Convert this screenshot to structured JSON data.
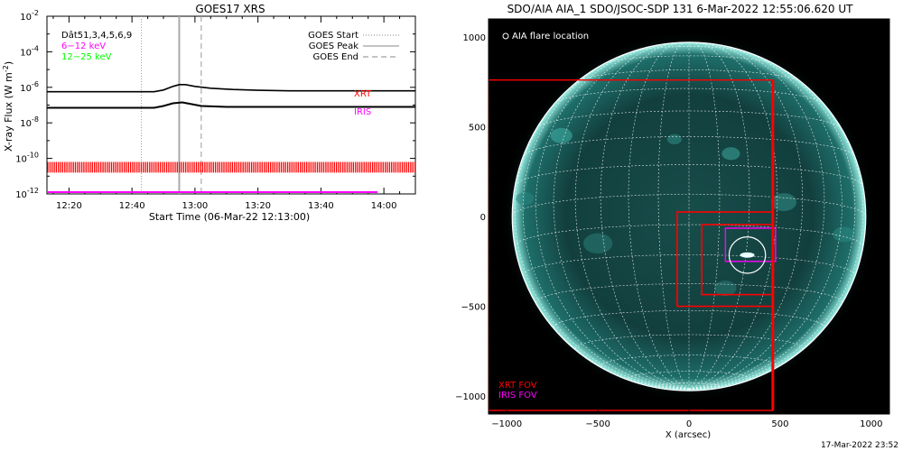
{
  "goes": {
    "title": "GOES17 XRS",
    "ylabel": "X-ray Flux (W m",
    "ylabel_sup": "-2",
    "ylabel_close": ")",
    "xlabel": "Start Time (06-Mar-22 12:13:00)",
    "ylim_exp": [
      -12,
      -2
    ],
    "y_ticks": [
      {
        "base": "10",
        "exp": "-2",
        "e": -2
      },
      {
        "base": "10",
        "exp": "-4",
        "e": -4
      },
      {
        "base": "10",
        "exp": "-6",
        "e": -6
      },
      {
        "base": "10",
        "exp": "-8",
        "e": -8
      },
      {
        "base": "10",
        "exp": "-10",
        "e": -10
      },
      {
        "base": "10",
        "exp": "-12",
        "e": -12
      }
    ],
    "xlim_min": [
      13,
      130
    ],
    "x_ticks": [
      {
        "label": "12:20",
        "m": 20
      },
      {
        "label": "12:40",
        "m": 40
      },
      {
        "label": "13:00",
        "m": 60
      },
      {
        "label": "13:20",
        "m": 80
      },
      {
        "label": "13:40",
        "m": 100
      },
      {
        "label": "14:00",
        "m": 120
      }
    ],
    "legend_left": [
      {
        "text": "Dât51,3,4,5,6,9",
        "color": "#000000"
      },
      {
        "text": "6−12 keV",
        "color": "#ff00ff"
      },
      {
        "text": "12−25 keV",
        "color": "#00ff00"
      }
    ],
    "legend_right": [
      {
        "text": "GOES Start",
        "style": "dotted"
      },
      {
        "text": "GOES Peak",
        "style": "solid"
      },
      {
        "text": "GOES End",
        "style": "dashed"
      }
    ],
    "event_lines": {
      "start": 43,
      "peak": 55,
      "end": 62
    },
    "xrt_label": "XRT",
    "iris_label": "IRIS",
    "series_high": {
      "min": [
        13,
        47,
        50,
        53,
        55,
        57,
        60,
        65,
        72,
        80,
        90,
        100,
        110,
        122,
        130
      ],
      "exp": [
        -6.25,
        -6.25,
        -6.15,
        -5.95,
        -5.85,
        -5.85,
        -5.95,
        -6.05,
        -6.12,
        -6.17,
        -6.2,
        -6.2,
        -6.2,
        -6.2,
        -6.2
      ]
    },
    "series_low": {
      "min": [
        13,
        47,
        50,
        53,
        56,
        59,
        62,
        70,
        80,
        100,
        130
      ],
      "exp": [
        -7.15,
        -7.15,
        -7.05,
        -6.9,
        -6.85,
        -6.95,
        -7.05,
        -7.1,
        -7.1,
        -7.1,
        -7.1
      ]
    },
    "xrt_exp_range": [
      -10.8,
      -10.2
    ],
    "xrt_time_range": [
      13,
      130
    ],
    "iris_exp": -11.9,
    "iris_time_range": [
      13,
      118
    ]
  },
  "aia": {
    "title": "SDO/AIA AIA_1 SDO/JSOC-SDP 131  6-Mar-2022 12:55:06.620 UT",
    "xlabel": "X (arcsec)",
    "legend_top": "AIA flare location",
    "xrt_fov_label": "XRT FOV",
    "iris_fov_label": "IRIS FOV",
    "timestamp": "17-Mar-2022 23:52",
    "xlim": [
      -1100,
      1100
    ],
    "ylim": [
      -1100,
      1100
    ],
    "solar_radius": 970,
    "x_ticks": [
      {
        "label": "−1000",
        "v": -1000
      },
      {
        "label": "−500",
        "v": -500
      },
      {
        "label": "0",
        "v": 0
      },
      {
        "label": "500",
        "v": 500
      },
      {
        "label": "1000",
        "v": 1000
      }
    ],
    "y_ticks": [
      {
        "label": "1000",
        "v": 1000
      },
      {
        "label": "500",
        "v": 500
      },
      {
        "label": "0",
        "v": 0
      },
      {
        "label": "−500",
        "v": -500
      },
      {
        "label": "−1000",
        "v": -1000
      }
    ],
    "xrt_fov_large": [
      -1100,
      460,
      -1080,
      760
    ],
    "xrt_fov_mid": [
      -65,
      460,
      -500,
      25
    ],
    "xrt_fov_small": [
      70,
      460,
      -435,
      -45
    ],
    "iris_fov": [
      200,
      475,
      -250,
      -65
    ],
    "flare_location": [
      320,
      -215
    ],
    "flare_radius": 100
  },
  "colors": {
    "xrt": "#ff0000",
    "iris": "#ff00ff",
    "low": "#00ff00",
    "grid": "#ffffff",
    "sun": "#0d3a3a"
  }
}
